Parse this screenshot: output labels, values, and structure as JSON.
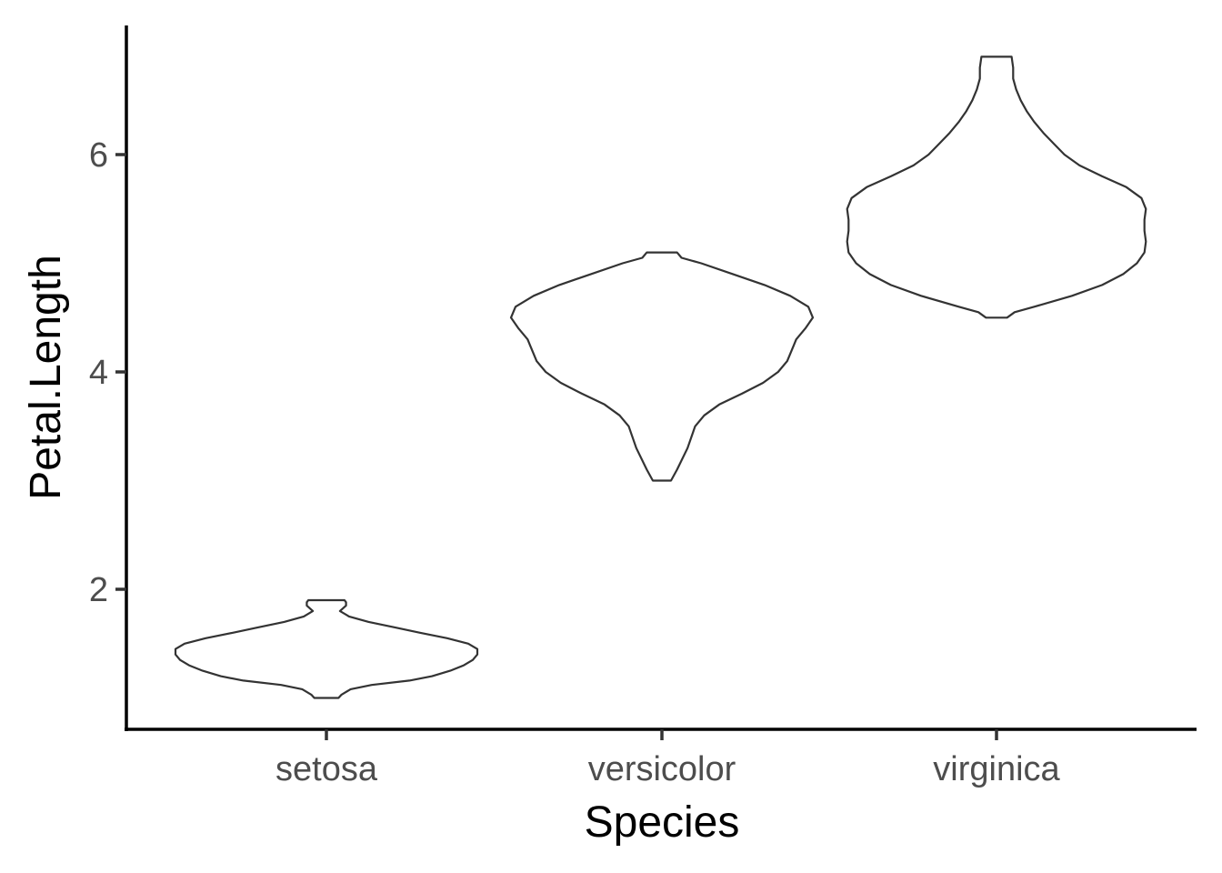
{
  "chart_data": {
    "type": "violin",
    "xlabel": "Species",
    "ylabel": "Petal.Length",
    "categories": [
      "setosa",
      "versicolor",
      "virginica"
    ],
    "ylim": [
      0.75,
      7.2
    ],
    "yticks": [
      2,
      4,
      6
    ],
    "grid": false,
    "legend": "none",
    "colors": {
      "fill": "#ffffff",
      "stroke": "#333333",
      "axis": "#000000",
      "tick_text": "#4d4d4d"
    },
    "violins": [
      {
        "category": "setosa",
        "min": 1.0,
        "max": 1.9,
        "profile": [
          [
            1.0,
            0.08
          ],
          [
            1.03,
            0.1
          ],
          [
            1.08,
            0.16
          ],
          [
            1.12,
            0.3
          ],
          [
            1.16,
            0.55
          ],
          [
            1.2,
            0.7
          ],
          [
            1.25,
            0.82
          ],
          [
            1.3,
            0.91
          ],
          [
            1.35,
            0.97
          ],
          [
            1.4,
            1.0
          ],
          [
            1.45,
            1.0
          ],
          [
            1.5,
            0.94
          ],
          [
            1.55,
            0.8
          ],
          [
            1.6,
            0.62
          ],
          [
            1.65,
            0.45
          ],
          [
            1.7,
            0.28
          ],
          [
            1.75,
            0.15
          ],
          [
            1.8,
            0.09
          ],
          [
            1.85,
            0.13
          ],
          [
            1.88,
            0.13
          ],
          [
            1.9,
            0.12
          ]
        ]
      },
      {
        "category": "versicolor",
        "min": 3.0,
        "max": 5.1,
        "profile": [
          [
            3.0,
            0.06
          ],
          [
            3.1,
            0.1
          ],
          [
            3.3,
            0.17
          ],
          [
            3.5,
            0.22
          ],
          [
            3.6,
            0.28
          ],
          [
            3.7,
            0.38
          ],
          [
            3.8,
            0.53
          ],
          [
            3.9,
            0.67
          ],
          [
            4.0,
            0.77
          ],
          [
            4.1,
            0.83
          ],
          [
            4.2,
            0.86
          ],
          [
            4.3,
            0.89
          ],
          [
            4.4,
            0.95
          ],
          [
            4.5,
            1.0
          ],
          [
            4.6,
            0.97
          ],
          [
            4.7,
            0.85
          ],
          [
            4.8,
            0.68
          ],
          [
            4.9,
            0.47
          ],
          [
            5.0,
            0.26
          ],
          [
            5.05,
            0.13
          ],
          [
            5.1,
            0.1
          ]
        ]
      },
      {
        "category": "virginica",
        "min": 4.5,
        "max": 6.9,
        "profile": [
          [
            4.5,
            0.07
          ],
          [
            4.55,
            0.12
          ],
          [
            4.6,
            0.25
          ],
          [
            4.7,
            0.5
          ],
          [
            4.8,
            0.7
          ],
          [
            4.9,
            0.84
          ],
          [
            5.0,
            0.93
          ],
          [
            5.1,
            0.98
          ],
          [
            5.2,
            0.99
          ],
          [
            5.3,
            0.98
          ],
          [
            5.4,
            0.98
          ],
          [
            5.5,
            0.99
          ],
          [
            5.6,
            0.96
          ],
          [
            5.7,
            0.86
          ],
          [
            5.8,
            0.7
          ],
          [
            5.9,
            0.55
          ],
          [
            6.0,
            0.45
          ],
          [
            6.1,
            0.38
          ],
          [
            6.2,
            0.31
          ],
          [
            6.3,
            0.25
          ],
          [
            6.4,
            0.2
          ],
          [
            6.5,
            0.16
          ],
          [
            6.6,
            0.13
          ],
          [
            6.7,
            0.11
          ],
          [
            6.8,
            0.11
          ],
          [
            6.9,
            0.1
          ]
        ]
      }
    ]
  }
}
